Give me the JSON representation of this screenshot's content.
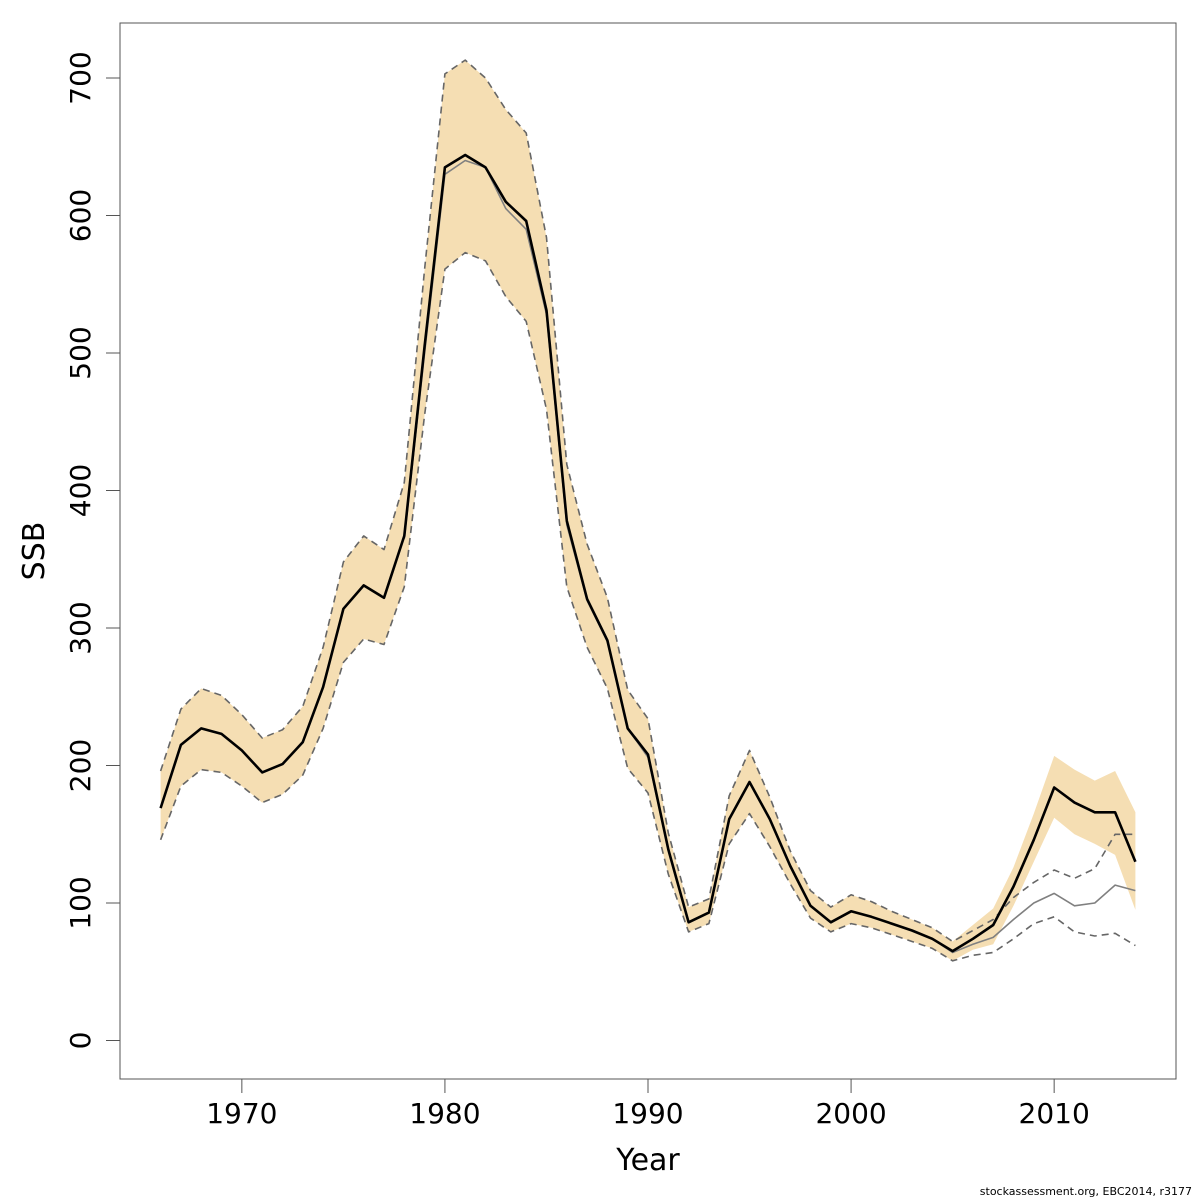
{
  "chart_data": {
    "type": "line",
    "xlabel": "Year",
    "ylabel": "SSB",
    "xlim": [
      1964,
      2016
    ],
    "ylim": [
      -28,
      740
    ],
    "x_ticks": [
      1970,
      1980,
      1990,
      2000,
      2010
    ],
    "y_ticks": [
      0,
      100,
      200,
      300,
      400,
      500,
      600,
      700
    ],
    "grid": false,
    "colors": {
      "band": "#f5deb3",
      "main_line": "#000000",
      "secondary_line": "#808080",
      "dashed": "#666666"
    },
    "band": {
      "x": [
        1966,
        1967,
        1968,
        1969,
        1970,
        1971,
        1972,
        1973,
        1974,
        1975,
        1976,
        1977,
        1978,
        1979,
        1980,
        1981,
        1982,
        1983,
        1984,
        1985,
        1986,
        1987,
        1988,
        1989,
        1990,
        1991,
        1992,
        1993,
        1994,
        1995,
        1996,
        1997,
        1998,
        1999,
        2000,
        2001,
        2002,
        2003,
        2004,
        2005,
        2006,
        2007,
        2008,
        2009,
        2010,
        2011,
        2012,
        2013,
        2014
      ],
      "upper": [
        196,
        241,
        256,
        251,
        237,
        220,
        226,
        243,
        286,
        348,
        367,
        357,
        406,
        561,
        703,
        713,
        700,
        677,
        660,
        584,
        419,
        361,
        322,
        255,
        234,
        151,
        97,
        103,
        178,
        211,
        177,
        138,
        109,
        97,
        106,
        101,
        94,
        88,
        82,
        72,
        84,
        96,
        126,
        165,
        207,
        197,
        189,
        196,
        166
      ],
      "lower": [
        146,
        185,
        197,
        195,
        185,
        173,
        179,
        193,
        227,
        275,
        292,
        288,
        330,
        455,
        561,
        573,
        567,
        541,
        523,
        459,
        330,
        286,
        256,
        198,
        180,
        121,
        79,
        85,
        143,
        165,
        141,
        114,
        89,
        79,
        85,
        82,
        77,
        72,
        67,
        58,
        66,
        70,
        98,
        130,
        162,
        150,
        143,
        135,
        95
      ]
    },
    "series": [
      {
        "name": "",
        "style": "solid-black",
        "x": [
          1966,
          1967,
          1968,
          1969,
          1970,
          1971,
          1972,
          1973,
          1974,
          1975,
          1976,
          1977,
          1978,
          1979,
          1980,
          1981,
          1982,
          1983,
          1984,
          1985,
          1986,
          1987,
          1988,
          1989,
          1990,
          1991,
          1992,
          1993,
          1994,
          1995,
          1996,
          1997,
          1998,
          1999,
          2000,
          2001,
          2002,
          2003,
          2004,
          2005,
          2006,
          2007,
          2008,
          2009,
          2010,
          2011,
          2012,
          2013,
          2014
        ],
        "values": [
          169,
          215,
          227,
          223,
          211,
          195,
          201,
          217,
          257,
          314,
          331,
          322,
          367,
          505,
          635,
          644,
          635,
          610,
          596,
          531,
          378,
          321,
          291,
          227,
          208,
          139,
          86,
          93,
          161,
          188,
          161,
          127,
          98,
          86,
          94,
          90,
          85,
          80,
          74,
          65,
          74,
          84,
          112,
          146,
          184,
          173,
          166,
          166,
          130
        ]
      },
      {
        "name": "",
        "style": "solid-grey",
        "x": [
          1978,
          1979,
          1980,
          1981,
          1982,
          1983,
          1984,
          1985,
          1986,
          1987,
          1988,
          1989,
          1990,
          1991,
          1992,
          1993,
          1994,
          1995,
          1996,
          1997,
          1998,
          1999,
          2000,
          2001,
          2002,
          2003,
          2004,
          2005,
          2006,
          2007,
          2008,
          2009,
          2010,
          2011,
          2012,
          2013,
          2014
        ],
        "values": [
          365,
          500,
          630,
          640,
          635,
          605,
          590,
          528,
          375,
          320,
          290,
          227,
          206,
          139,
          86,
          93,
          161,
          188,
          161,
          127,
          98,
          86,
          94,
          90,
          85,
          80,
          74,
          64,
          70,
          75,
          88,
          100,
          107,
          98,
          100,
          113,
          109
        ]
      },
      {
        "name": "",
        "style": "dashed-upper",
        "x": [
          1966,
          1967,
          1968,
          1969,
          1970,
          1971,
          1972,
          1973,
          1974,
          1975,
          1976,
          1977,
          1978,
          1979,
          1980,
          1981,
          1982,
          1983,
          1984,
          1985,
          1986,
          1987,
          1988,
          1989,
          1990,
          1991,
          1992,
          1993,
          1994,
          1995,
          1996,
          1997,
          1998,
          1999,
          2000,
          2001,
          2002,
          2003,
          2004,
          2005,
          2006,
          2007,
          2008,
          2009,
          2010,
          2011,
          2012,
          2013,
          2014
        ],
        "values": [
          196,
          241,
          256,
          251,
          237,
          220,
          226,
          243,
          286,
          348,
          367,
          357,
          406,
          561,
          703,
          713,
          700,
          677,
          660,
          584,
          419,
          361,
          322,
          255,
          234,
          151,
          97,
          103,
          178,
          211,
          177,
          138,
          109,
          97,
          106,
          101,
          94,
          88,
          82,
          72,
          80,
          88,
          104,
          115,
          124,
          118,
          125,
          150,
          150
        ]
      },
      {
        "name": "",
        "style": "dashed-lower",
        "x": [
          1966,
          1967,
          1968,
          1969,
          1970,
          1971,
          1972,
          1973,
          1974,
          1975,
          1976,
          1977,
          1978,
          1979,
          1980,
          1981,
          1982,
          1983,
          1984,
          1985,
          1986,
          1987,
          1988,
          1989,
          1990,
          1991,
          1992,
          1993,
          1994,
          1995,
          1996,
          1997,
          1998,
          1999,
          2000,
          2001,
          2002,
          2003,
          2004,
          2005,
          2006,
          2007,
          2008,
          2009,
          2010,
          2011,
          2012,
          2013,
          2014
        ],
        "values": [
          146,
          185,
          197,
          195,
          185,
          173,
          179,
          193,
          227,
          275,
          292,
          288,
          330,
          455,
          561,
          573,
          567,
          541,
          523,
          459,
          330,
          286,
          256,
          198,
          180,
          121,
          79,
          85,
          143,
          165,
          141,
          114,
          89,
          79,
          85,
          82,
          77,
          72,
          67,
          58,
          62,
          64,
          74,
          85,
          90,
          79,
          76,
          78,
          69
        ]
      }
    ]
  },
  "footer": {
    "credit": "stockassessment.org, EBC2014, r3177"
  }
}
